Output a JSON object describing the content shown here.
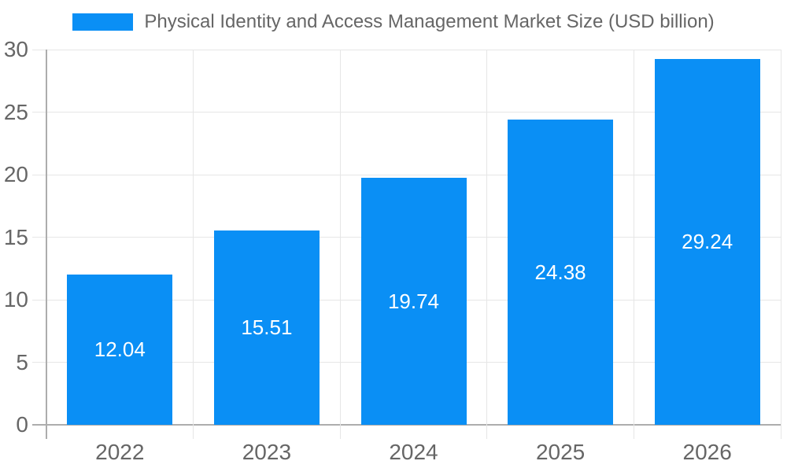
{
  "chart_data": {
    "type": "bar",
    "title": "Physical Identity and Access Management Market Size (USD billion)",
    "legend": {
      "position": "top",
      "entries": [
        "Physical Identity and Access Management Market Size (USD billion)"
      ]
    },
    "categories": [
      "2022",
      "2023",
      "2024",
      "2025",
      "2026"
    ],
    "values": [
      12.04,
      15.51,
      19.74,
      24.38,
      29.24
    ],
    "value_labels": [
      "12.04",
      "15.51",
      "19.74",
      "24.38",
      "29.24"
    ],
    "xlabel": "",
    "ylabel": "",
    "ylim": [
      0,
      30
    ],
    "yticks": [
      0,
      5,
      10,
      15,
      20,
      25,
      30
    ],
    "grid": true
  },
  "colors": {
    "bar": "#0a8ff5",
    "grid": "#e6e6e6",
    "axis": "#adadad",
    "tick_text": "#666666",
    "legend_text": "#666666",
    "value_text": "#ffffff",
    "background": "#ffffff"
  }
}
